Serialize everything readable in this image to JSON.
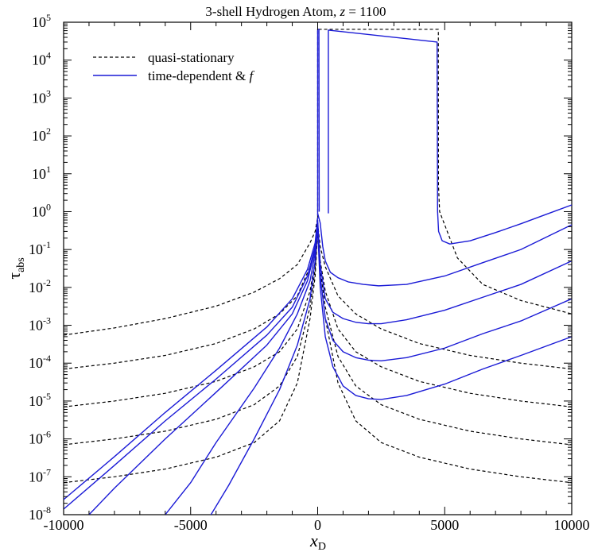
{
  "chart_data": {
    "type": "line",
    "title": {
      "prefix": "3-shell Hydrogen Atom, ",
      "var": "z",
      "suffix": " = 1100"
    },
    "xlabel": {
      "main": "x",
      "sub": "D"
    },
    "ylabel": {
      "main": "τ",
      "sub": "abs"
    },
    "xlim": [
      -10000,
      10000
    ],
    "ylim_log10": [
      -8,
      5
    ],
    "y_scale": "log",
    "grid": false,
    "legend_position": "top-left",
    "x_ticks": [
      -10000,
      -5000,
      0,
      5000,
      10000
    ],
    "x_tick_labels": [
      "-10000",
      "-5000",
      "0",
      "5000",
      "10000"
    ],
    "y_tick_exponents": [
      -8,
      -7,
      -6,
      -5,
      -4,
      -3,
      -2,
      -1,
      0,
      1,
      2,
      3,
      4,
      5
    ],
    "y_tick_base": "10",
    "series": [
      {
        "name": "quasi-stationary",
        "color": "#000000",
        "dash": true,
        "curves": [
          {
            "id": "qs-1",
            "x": [
              -10000,
              -8000,
              -6000,
              -4000,
              -2500,
              -1500,
              -800,
              -300,
              -100,
              0
            ],
            "y": [
              0.00055,
              0.00085,
              0.0015,
              0.0032,
              0.0075,
              0.017,
              0.04,
              0.15,
              0.3,
              0.7
            ]
          },
          {
            "id": "qs-2",
            "x": [
              -10000,
              -8000,
              -6000,
              -4000,
              -2500,
              -1500,
              -800,
              -300,
              -100,
              0
            ],
            "y": [
              7e-05,
              0.0001,
              0.00016,
              0.00033,
              0.0008,
              0.002,
              0.006,
              0.035,
              0.12,
              0.5
            ]
          },
          {
            "id": "qs-3",
            "x": [
              -10000,
              -8000,
              -6000,
              -4000,
              -2500,
              -1500,
              -800,
              -300,
              -100,
              0
            ],
            "y": [
              7e-06,
              1e-05,
              1.6e-05,
              3.3e-05,
              8e-05,
              0.0002,
              0.0008,
              0.008,
              0.05,
              0.4
            ]
          },
          {
            "id": "qs-4",
            "x": [
              -10000,
              -8000,
              -6000,
              -4000,
              -2500,
              -1500,
              -800,
              -300,
              -100,
              0
            ],
            "y": [
              7e-07,
              1e-06,
              1.6e-06,
              3.3e-06,
              8e-06,
              2.5e-05,
              0.00015,
              0.003,
              0.03,
              0.35
            ]
          },
          {
            "id": "qs-5",
            "x": [
              -10000,
              -8000,
              -6000,
              -4000,
              -2500,
              -1500,
              -800,
              -300,
              -100,
              0
            ],
            "y": [
              7e-08,
              1e-07,
              1.6e-07,
              3.3e-07,
              8e-07,
              3e-06,
              3e-05,
              0.0015,
              0.02,
              0.3
            ]
          },
          {
            "id": "qs-6",
            "x": [
              0,
              0,
              0,
              4750,
              4750,
              4755,
              4800,
              5100,
              5500,
              6500,
              8000,
              10000
            ],
            "y": [
              0.7,
              60000,
              65000,
              65000,
              60000,
              5,
              1.0,
              0.3,
              0.06,
              0.012,
              0.0045,
              0.002
            ]
          },
          {
            "id": "qs-7",
            "x": [
              0,
              100,
              300,
              800,
              1500,
              2500,
              4000,
              6000,
              8000,
              10000
            ],
            "y": [
              0.5,
              0.12,
              0.035,
              0.006,
              0.002,
              0.0008,
              0.00033,
              0.00016,
              0.0001,
              7e-05
            ]
          },
          {
            "id": "qs-8",
            "x": [
              0,
              100,
              300,
              800,
              1500,
              2500,
              4000,
              6000,
              8000,
              10000
            ],
            "y": [
              0.4,
              0.05,
              0.008,
              0.0008,
              0.0002,
              8e-05,
              3.3e-05,
              1.6e-05,
              1e-05,
              7e-06
            ]
          },
          {
            "id": "qs-9",
            "x": [
              0,
              100,
              300,
              800,
              1500,
              2500,
              4000,
              6000,
              8000,
              10000
            ],
            "y": [
              0.35,
              0.03,
              0.003,
              0.00015,
              2.5e-05,
              8e-06,
              3.3e-06,
              1.6e-06,
              1e-06,
              7e-07
            ]
          },
          {
            "id": "qs-10",
            "x": [
              0,
              100,
              300,
              800,
              1500,
              2500,
              4000,
              6000,
              8000,
              10000
            ],
            "y": [
              0.3,
              0.02,
              0.0015,
              3e-05,
              3e-06,
              8e-07,
              3.3e-07,
              1.6e-07,
              1e-07,
              7e-08
            ]
          }
        ]
      },
      {
        "name": "time-dependent & ",
        "name_var": "f",
        "color": "#1a1ad6",
        "dash": false,
        "curves": [
          {
            "id": "td-1",
            "x": [
              -10000,
              -8000,
              -6000,
              -4000,
              -2000,
              -1000,
              -400,
              -100,
              0
            ],
            "y": [
              2.5e-08,
              3.4e-07,
              5e-06,
              6.5e-05,
              0.0009,
              0.005,
              0.03,
              0.15,
              0.7
            ]
          },
          {
            "id": "td-2",
            "x": [
              -10000,
              -8000,
              -6000,
              -4000,
              -2000,
              -1000,
              -400,
              -100,
              0
            ],
            "y": [
              1.4e-08,
              2e-07,
              3e-06,
              3.8e-05,
              0.00055,
              0.003,
              0.02,
              0.12,
              0.6
            ]
          },
          {
            "id": "td-3",
            "x": [
              -9000,
              -8000,
              -6000,
              -4000,
              -2000,
              -1000,
              -400,
              -100,
              0
            ],
            "y": [
              1e-08,
              5e-08,
              1e-06,
              1.7e-05,
              0.0003,
              0.002,
              0.015,
              0.1,
              0.5
            ]
          },
          {
            "id": "td-4",
            "x": [
              -6000,
              -5000,
              -4000,
              -2500,
              -1500,
              -800,
              -300,
              -100,
              0
            ],
            "y": [
              1e-08,
              7e-08,
              8e-07,
              2.2e-05,
              0.00025,
              0.002,
              0.015,
              0.08,
              0.45
            ]
          },
          {
            "id": "td-5",
            "x": [
              -4200,
              -3500,
              -2500,
              -1500,
              -800,
              -300,
              -100,
              0
            ],
            "y": [
              1e-08,
              6e-08,
              1e-06,
              2e-05,
              0.0003,
              0.005,
              0.05,
              0.4
            ]
          },
          {
            "id": "td-6",
            "x": [
              0,
              0,
              50,
              60
            ],
            "y": [
              0.8,
              65000,
              65000,
              1.0
            ]
          },
          {
            "id": "td-7",
            "x": [
              420,
              420,
              4700,
              4720,
              4760,
              4900,
              5200,
              6000,
              7000,
              8000,
              9000,
              10000
            ],
            "y": [
              0.9,
              62000,
              30000,
              1.0,
              0.3,
              0.17,
              0.14,
              0.17,
              0.28,
              0.48,
              0.85,
              1.5
            ]
          },
          {
            "id": "td-8",
            "x": [
              0,
              100,
              200,
              300,
              500,
              800,
              1200,
              1800,
              2400,
              3500,
              5000,
              6500,
              8000,
              10000
            ],
            "y": [
              0.9,
              0.5,
              0.12,
              0.05,
              0.025,
              0.018,
              0.014,
              0.012,
              0.011,
              0.012,
              0.02,
              0.045,
              0.1,
              0.45
            ]
          },
          {
            "id": "td-9",
            "x": [
              0,
              100,
              300,
              600,
              1000,
              1500,
              2000,
              2500,
              3500,
              5000,
              6500,
              8000,
              10000
            ],
            "y": [
              0.6,
              0.04,
              0.005,
              0.0022,
              0.0015,
              0.0012,
              0.0011,
              0.0011,
              0.0014,
              0.0025,
              0.0055,
              0.012,
              0.05
            ]
          },
          {
            "id": "td-10",
            "x": [
              0,
              100,
              300,
              600,
              1000,
              1500,
              2000,
              2500,
              3500,
              5000,
              6500,
              8000,
              10000
            ],
            "y": [
              0.5,
              0.02,
              0.0015,
              0.0004,
              0.0002,
              0.00014,
              0.00012,
              0.000115,
              0.00014,
              0.00025,
              0.0006,
              0.0013,
              0.005
            ]
          },
          {
            "id": "td-11",
            "x": [
              0,
              100,
              300,
              600,
              1000,
              1500,
              2000,
              2500,
              3500,
              5000,
              6500,
              8000,
              10000
            ],
            "y": [
              0.4,
              0.01,
              0.0005,
              8e-05,
              2.5e-05,
              1.4e-05,
              1.15e-05,
              1.1e-05,
              1.4e-05,
              2.8e-05,
              7e-05,
              0.00016,
              0.0005
            ]
          }
        ]
      }
    ]
  }
}
